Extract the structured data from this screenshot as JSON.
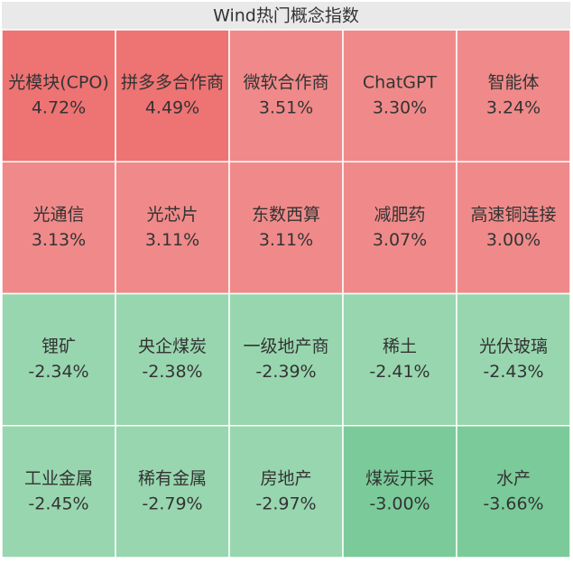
{
  "chart_data": {
    "type": "heatmap",
    "title": "Wind热门概念指数",
    "columns": 5,
    "categories": [
      "光模块(CPO)",
      "拼多多合作商",
      "微软合作商",
      "ChatGPT",
      "智能体",
      "光通信",
      "光芯片",
      "东数西算",
      "减肥药",
      "高速铜连接",
      "锂矿",
      "央企煤炭",
      "一级地产商",
      "稀土",
      "光伏玻璃",
      "工业金属",
      "稀有金属",
      "房地产",
      "煤炭开采",
      "水产"
    ],
    "values": [
      4.72,
      4.49,
      3.51,
      3.3,
      3.24,
      3.13,
      3.11,
      3.11,
      3.07,
      3.0,
      -2.34,
      -2.38,
      -2.39,
      -2.41,
      -2.43,
      -2.45,
      -2.79,
      -2.97,
      -3.0,
      -3.66
    ],
    "value_labels": [
      "4.72%",
      "4.49%",
      "3.51%",
      "3.30%",
      "3.24%",
      "3.13%",
      "3.11%",
      "3.11%",
      "3.07%",
      "3.00%",
      "-2.34%",
      "-2.38%",
      "-2.39%",
      "-2.41%",
      "-2.43%",
      "-2.45%",
      "-2.79%",
      "-2.97%",
      "-3.00%",
      "-3.66%"
    ],
    "colors": [
      "#ee7373",
      "#ee7373",
      "#f08a8a",
      "#f08a8a",
      "#f08a8a",
      "#f08a8a",
      "#f08a8a",
      "#f08a8a",
      "#f08a8a",
      "#f08a8a",
      "#98d6af",
      "#98d6af",
      "#98d6af",
      "#98d6af",
      "#98d6af",
      "#98d6af",
      "#98d6af",
      "#98d6af",
      "#7acb99",
      "#7acb99"
    ]
  }
}
